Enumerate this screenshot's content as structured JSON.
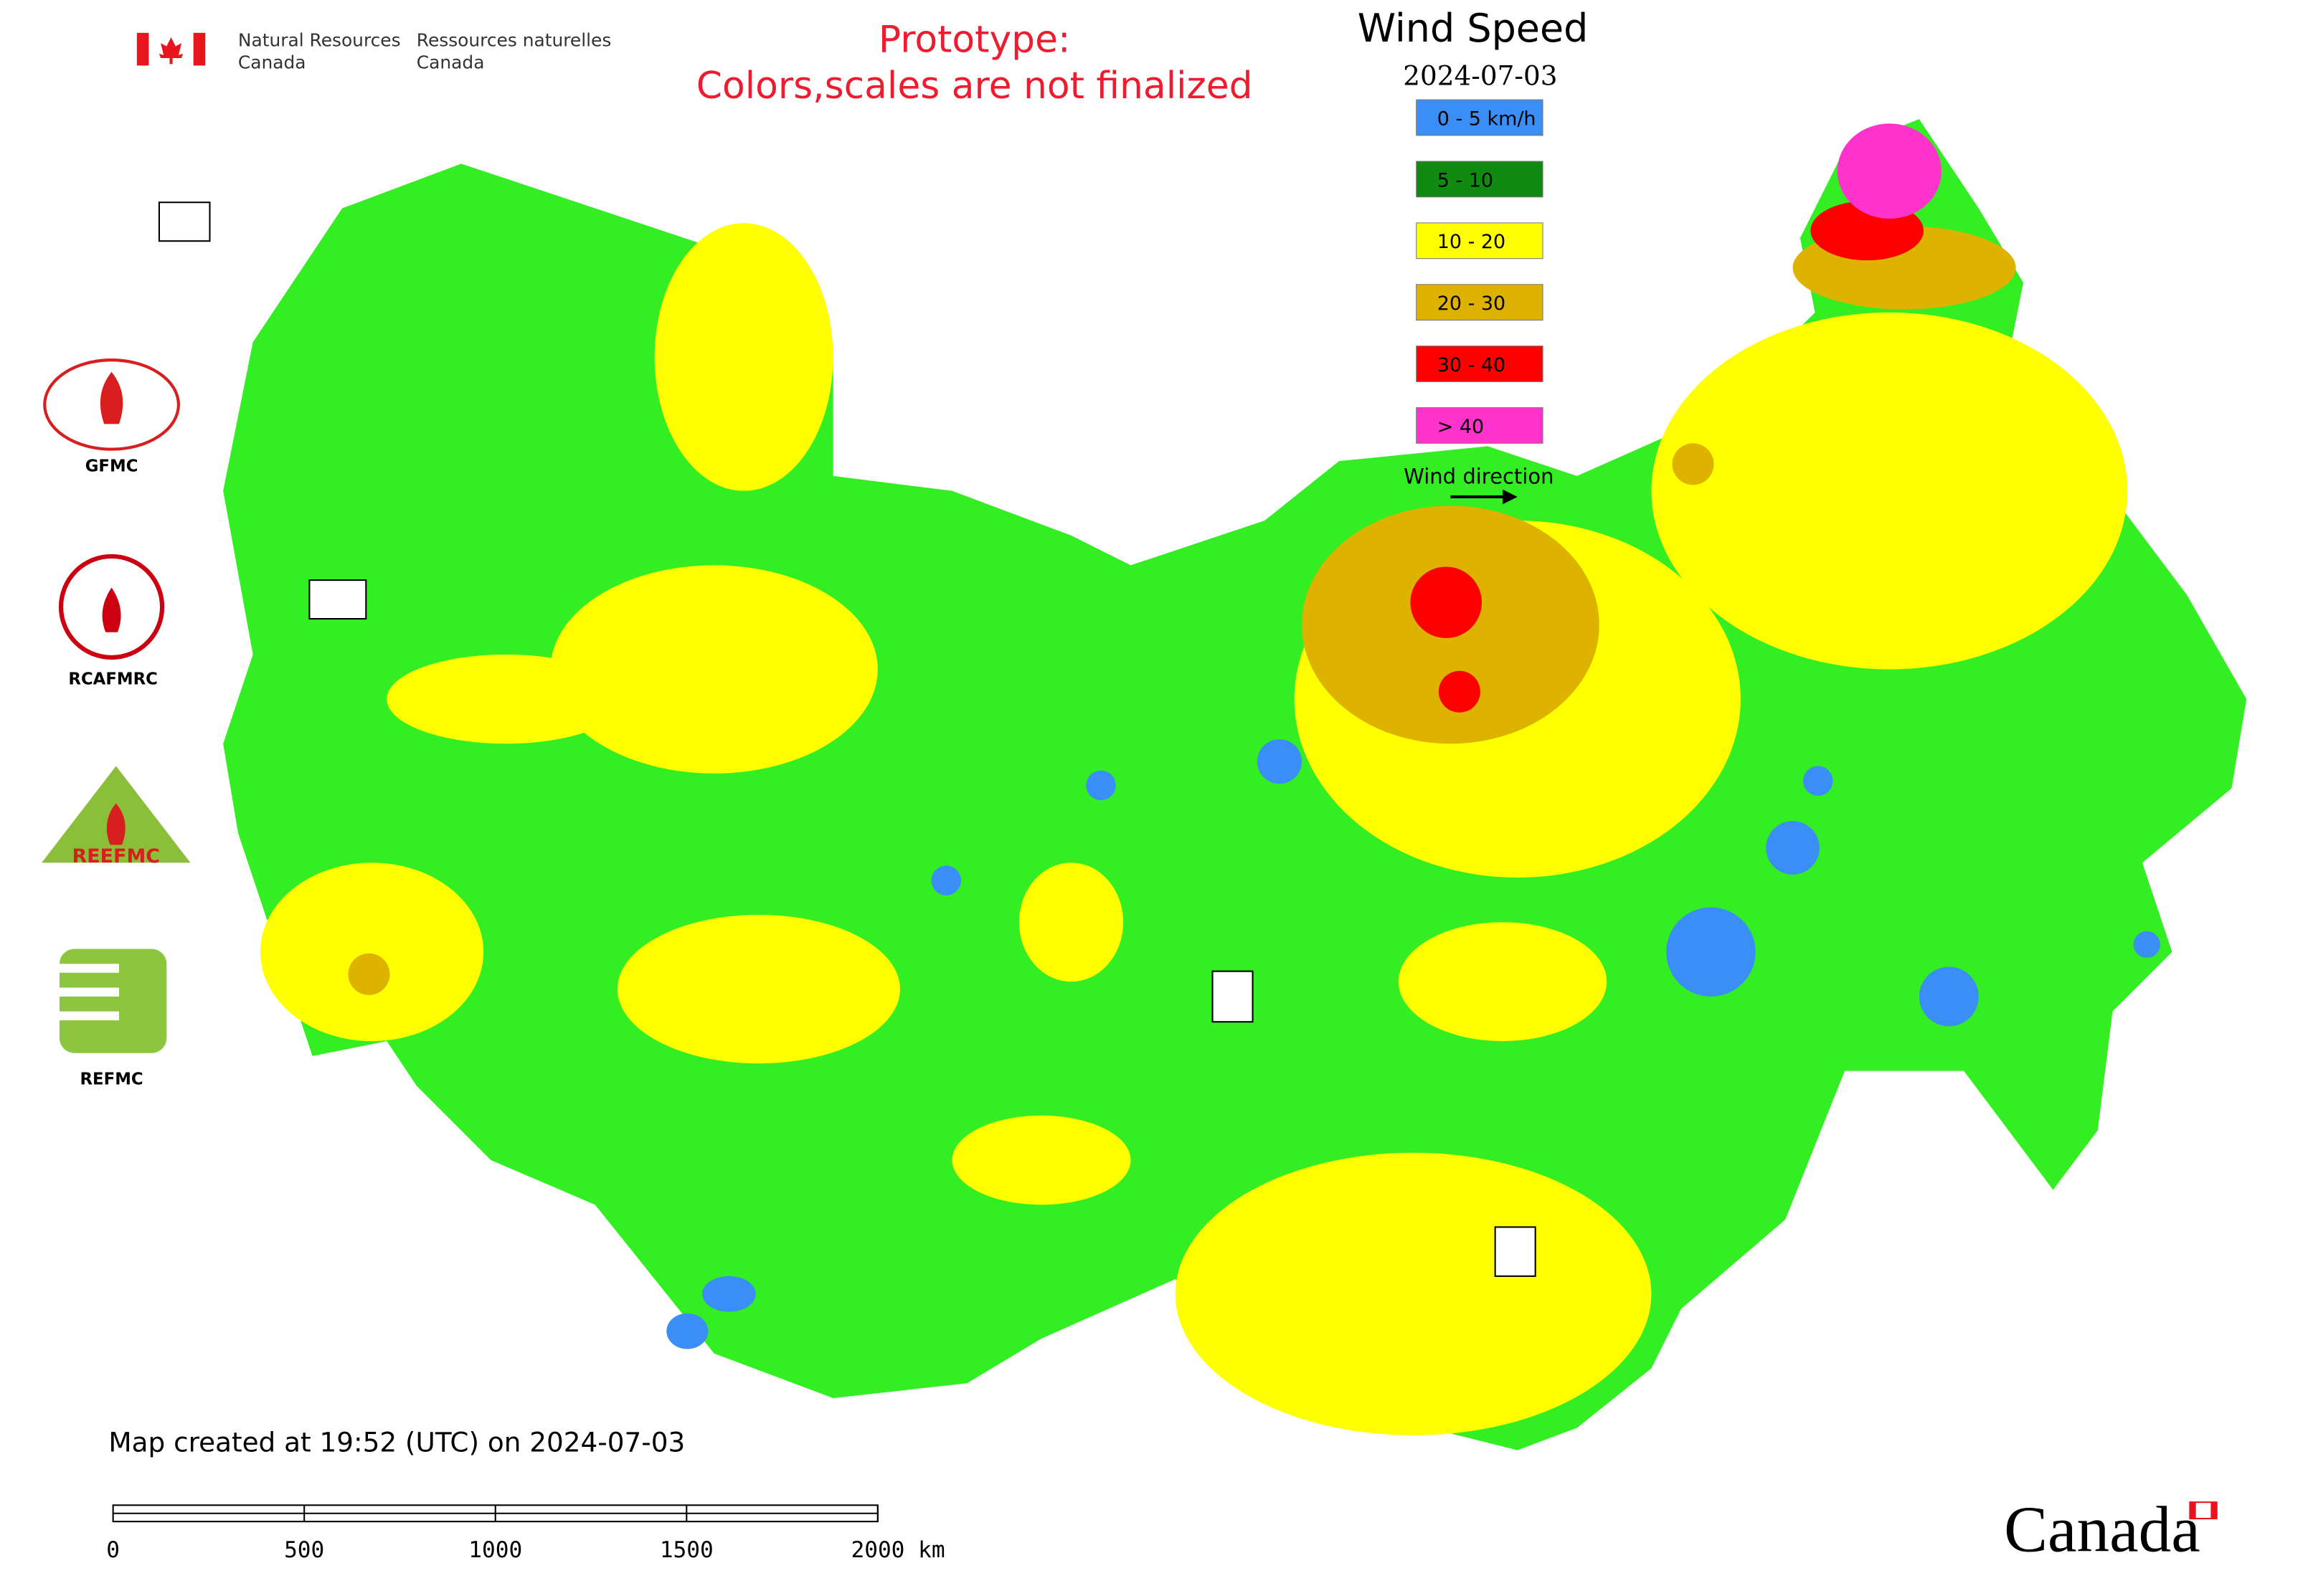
{
  "header": {
    "agency_en_1": "Natural Resources",
    "agency_en_2": "Canada",
    "agency_fr_1": "Ressources naturelles",
    "agency_fr_2": "Canada",
    "notice_1": "Prototype:",
    "notice_2": "Colors,scales are not finalized"
  },
  "legend": {
    "title": "Wind Speed",
    "date": "2024-07-03",
    "items": [
      {
        "label": "0 - 5 km/h",
        "color": "#3a8ef6"
      },
      {
        "label": "5 - 10",
        "color": "#118a11"
      },
      {
        "label": "10 - 20",
        "color": "#ffff00"
      },
      {
        "label": "20 - 30",
        "color": "#ddb300"
      },
      {
        "label": "30 - 40",
        "color": "#ff0000"
      },
      {
        "label": "> 40",
        "color": "#ff33cc"
      }
    ],
    "wind_direction": "Wind direction"
  },
  "logos": [
    "GFMC",
    "RCAFMRC",
    "REEFMC",
    "REFMC"
  ],
  "footer": {
    "created": "Map created at 19:52 (UTC) on 2024-07-03"
  },
  "scale_bar": [
    "0",
    "500",
    "1000",
    "1500",
    "2000 km"
  ],
  "wordmark": "Canada"
}
